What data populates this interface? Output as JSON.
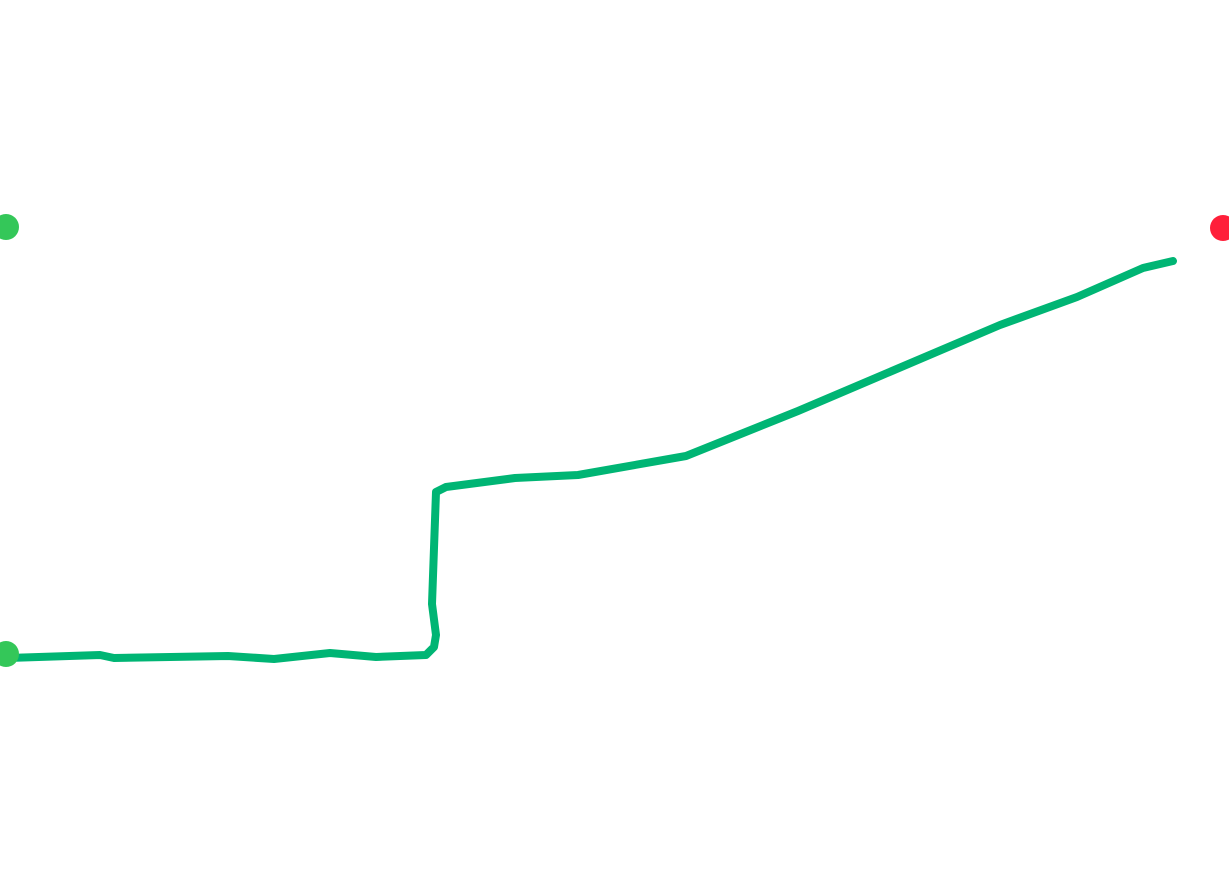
{
  "map": {
    "route_color": "#00b574",
    "markers": [
      {
        "kind": "start",
        "color": "#34c759"
      },
      {
        "kind": "waypoint",
        "color": "#34c759"
      },
      {
        "kind": "end",
        "color": "#ff1f3a"
      }
    ]
  }
}
